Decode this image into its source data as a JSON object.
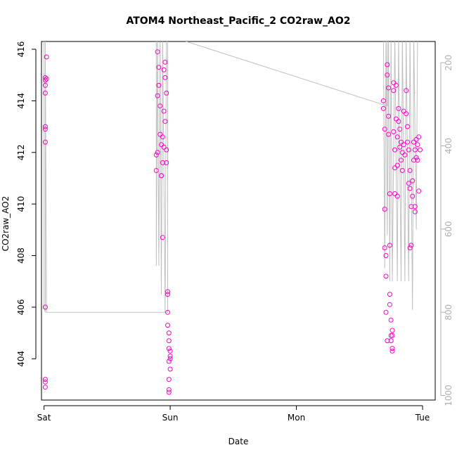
{
  "chart_data": {
    "type": "scatter",
    "title": "ATOM4 Northeast_Pacific_2 CO2raw_AO2",
    "xlabel": "Date",
    "ylabel": "CO2raw_AO2",
    "x_ticks": [
      "Sat",
      "Sun",
      "Mon",
      "Tue"
    ],
    "xlim": [
      -0.02,
      3.1
    ],
    "ylim": [
      402.4,
      416.3
    ],
    "y_ticks": [
      404,
      406,
      408,
      410,
      412,
      414,
      416
    ],
    "y2_ticks": [
      200,
      400,
      600,
      800,
      1000
    ],
    "y2lim": [
      1011,
      149
    ],
    "colors": {
      "points": "#ff00cc",
      "line": "#c0c0c0",
      "right_axis": "#b0b0b0"
    },
    "series": [
      {
        "type": "points",
        "values": [
          [
            0.01,
            414.9
          ],
          [
            0.01,
            414.8
          ],
          [
            0.01,
            414.6
          ],
          [
            0.01,
            414.3
          ],
          [
            0.01,
            413.0
          ],
          [
            0.01,
            412.9
          ],
          [
            0.01,
            412.4
          ],
          [
            0.01,
            406.0
          ],
          [
            0.01,
            403.2
          ],
          [
            0.01,
            403.1
          ],
          [
            0.01,
            402.9
          ],
          [
            0.02,
            415.7
          ],
          [
            0.02,
            414.85
          ],
          [
            0.89,
            411.3
          ],
          [
            0.89,
            411.9
          ],
          [
            0.9,
            412.0
          ],
          [
            0.9,
            414.2
          ],
          [
            0.9,
            415.9
          ],
          [
            0.91,
            415.3
          ],
          [
            0.91,
            414.6
          ],
          [
            0.92,
            413.8
          ],
          [
            0.92,
            412.7
          ],
          [
            0.93,
            412.3
          ],
          [
            0.93,
            411.1
          ],
          [
            0.93,
            411.1
          ],
          [
            0.94,
            412.6
          ],
          [
            0.94,
            411.6
          ],
          [
            0.94,
            408.7
          ],
          [
            0.95,
            415.2
          ],
          [
            0.95,
            413.6
          ],
          [
            0.95,
            412.2
          ],
          [
            0.96,
            415.5
          ],
          [
            0.96,
            414.9
          ],
          [
            0.96,
            413.2
          ],
          [
            0.97,
            414.3
          ],
          [
            0.97,
            412.1
          ],
          [
            0.97,
            411.6
          ],
          [
            0.98,
            406.6
          ],
          [
            0.98,
            406.5
          ],
          [
            0.98,
            405.8
          ],
          [
            0.98,
            405.3
          ],
          [
            0.99,
            405.0
          ],
          [
            0.99,
            404.7
          ],
          [
            0.99,
            404.4
          ],
          [
            0.99,
            403.9
          ],
          [
            0.99,
            403.2
          ],
          [
            0.99,
            402.8
          ],
          [
            0.99,
            402.7
          ],
          [
            1.0,
            404.3
          ],
          [
            1.0,
            404.1
          ],
          [
            1.0,
            404.0
          ],
          [
            1.0,
            403.6
          ],
          [
            2.69,
            414.0
          ],
          [
            2.69,
            413.7
          ],
          [
            2.7,
            412.9
          ],
          [
            2.7,
            409.8
          ],
          [
            2.7,
            408.3
          ],
          [
            2.71,
            408.0
          ],
          [
            2.71,
            407.2
          ],
          [
            2.71,
            405.8
          ],
          [
            2.72,
            404.7
          ],
          [
            2.72,
            415.4
          ],
          [
            2.72,
            415.0
          ],
          [
            2.73,
            414.5
          ],
          [
            2.73,
            413.4
          ],
          [
            2.73,
            412.7
          ],
          [
            2.74,
            410.4
          ],
          [
            2.74,
            408.4
          ],
          [
            2.74,
            406.5
          ],
          [
            2.74,
            406.1
          ],
          [
            2.75,
            405.5
          ],
          [
            2.75,
            404.9
          ],
          [
            2.75,
            404.7
          ],
          [
            2.76,
            404.4
          ],
          [
            2.76,
            404.3
          ],
          [
            2.76,
            405.1
          ],
          [
            2.76,
            404.9
          ],
          [
            2.77,
            414.7
          ],
          [
            2.77,
            414.4
          ],
          [
            2.77,
            412.8
          ],
          [
            2.78,
            412.1
          ],
          [
            2.78,
            411.4
          ],
          [
            2.78,
            410.4
          ],
          [
            2.79,
            414.6
          ],
          [
            2.79,
            413.3
          ],
          [
            2.8,
            412.6
          ],
          [
            2.8,
            411.5
          ],
          [
            2.8,
            410.3
          ],
          [
            2.81,
            413.7
          ],
          [
            2.81,
            413.2
          ],
          [
            2.82,
            412.9
          ],
          [
            2.82,
            412.2
          ],
          [
            2.83,
            412.4
          ],
          [
            2.83,
            411.7
          ],
          [
            2.84,
            412.0
          ],
          [
            2.84,
            411.3
          ],
          [
            2.85,
            413.6
          ],
          [
            2.85,
            412.3
          ],
          [
            2.86,
            411.9
          ],
          [
            2.87,
            414.4
          ],
          [
            2.87,
            413.5
          ],
          [
            2.88,
            413.0
          ],
          [
            2.88,
            412.4
          ],
          [
            2.89,
            412.1
          ],
          [
            2.89,
            410.8
          ],
          [
            2.9,
            411.3
          ],
          [
            2.9,
            410.6
          ],
          [
            2.9,
            408.3
          ],
          [
            2.91,
            409.9
          ],
          [
            2.91,
            408.4
          ],
          [
            2.92,
            410.9
          ],
          [
            2.92,
            410.3
          ],
          [
            2.93,
            412.4
          ],
          [
            2.93,
            411.7
          ],
          [
            2.94,
            412.1
          ],
          [
            2.94,
            409.9
          ],
          [
            2.94,
            409.7
          ],
          [
            2.95,
            412.5
          ],
          [
            2.95,
            411.8
          ],
          [
            2.96,
            412.3
          ],
          [
            2.96,
            411.7
          ],
          [
            2.97,
            412.6
          ],
          [
            2.97,
            410.5
          ],
          [
            2.98,
            412.1
          ]
        ]
      },
      {
        "type": "line",
        "values": [
          [
            0.0,
            416.5
          ],
          [
            0.0,
            406.0
          ],
          [
            0.01,
            405.8
          ],
          [
            0.01,
            416.5
          ],
          [
            0.02,
            405.8
          ],
          [
            0.98,
            405.8
          ],
          [
            0.98,
            416.5
          ],
          [
            1.0,
            416.5
          ],
          [
            2.72,
            413.8
          ],
          [
            2.72,
            416.5
          ],
          [
            0.89,
            416.5
          ],
          [
            0.89,
            407.6
          ],
          [
            0.9,
            416.5
          ],
          [
            0.91,
            407.6
          ],
          [
            0.92,
            416.5
          ],
          [
            0.93,
            406.5
          ],
          [
            0.94,
            416.5
          ],
          [
            0.96,
            405.8
          ],
          [
            0.97,
            416.5
          ],
          [
            2.69,
            416.5
          ],
          [
            2.7,
            407.5
          ],
          [
            2.71,
            416.5
          ],
          [
            2.72,
            408.8
          ],
          [
            2.73,
            416.5
          ],
          [
            2.74,
            407.0
          ],
          [
            2.75,
            416.5
          ],
          [
            2.76,
            407.0
          ],
          [
            2.78,
            416.5
          ],
          [
            2.8,
            407.0
          ],
          [
            2.81,
            416.5
          ],
          [
            2.83,
            407.0
          ],
          [
            2.84,
            416.5
          ],
          [
            2.86,
            407.0
          ],
          [
            2.87,
            416.5
          ],
          [
            2.89,
            407.0
          ],
          [
            2.9,
            416.5
          ],
          [
            2.92,
            405.9
          ],
          [
            2.93,
            416.5
          ],
          [
            2.95,
            409.0
          ],
          [
            2.96,
            416.5
          ]
        ]
      }
    ]
  }
}
